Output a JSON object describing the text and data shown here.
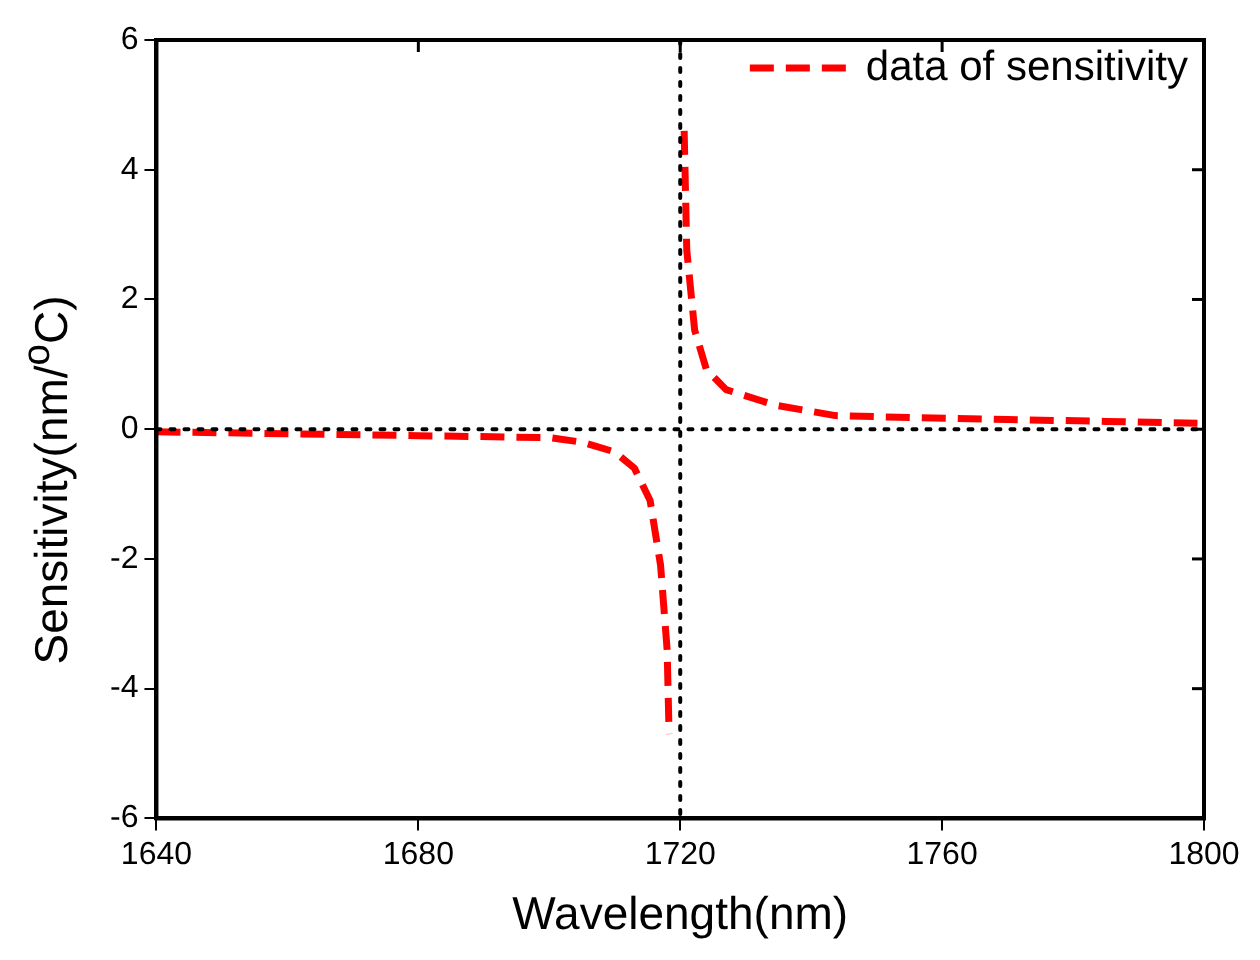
{
  "chart_data": {
    "type": "line",
    "xlabel": "Wavelength(nm)",
    "ylabel": "Sensitivity(nm/$^{o}$C)",
    "xlim": [
      1640,
      1800
    ],
    "xticks": [
      1640,
      1680,
      1720,
      1760,
      1800
    ],
    "ylim": [
      -6,
      6
    ],
    "yticks": [
      -6,
      -4,
      -2,
      0,
      2,
      4,
      6
    ],
    "x": [
      1640,
      1660,
      1680,
      1700,
      1705,
      1710,
      1713,
      1715.4,
      1717,
      1718,
      1718.3,
      1720,
      1720.6,
      1721,
      1722.2,
      1724,
      1727,
      1734.5,
      1743.7,
      1755,
      1770,
      1785,
      1799
    ],
    "series": [
      {
        "name": "data of sensitivity",
        "color": "#ff0000",
        "values": [
          -0.04,
          -0.07,
          -0.1,
          -0.13,
          -0.2,
          -0.35,
          -0.6,
          -1.1,
          -2.1,
          -3.4,
          -4.7,
          null,
          4.6,
          2.76,
          1.53,
          0.92,
          0.61,
          0.37,
          0.21,
          0.18,
          0.15,
          0.12,
          0.09
        ]
      }
    ],
    "ref_lines": [
      {
        "axis": "x",
        "value": 1720,
        "color": "#000000",
        "line_style": "dotted"
      },
      {
        "axis": "y",
        "value": 0,
        "color": "#000000",
        "line_style": "dotted"
      }
    ],
    "grid": false,
    "legend": "top right",
    "marker": "none",
    "line_style": "dashed"
  }
}
